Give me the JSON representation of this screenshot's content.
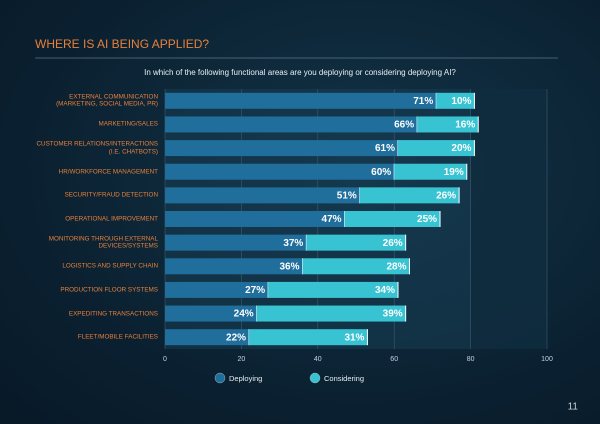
{
  "chart_data": {
    "type": "stacked-bar-horizontal",
    "title": "WHERE IS AI BEING APPLIED?",
    "subtitle": "In which of the following functional areas are you deploying or considering deploying AI?",
    "categories": [
      "EXTERNAL COMMUNICATION (MARKETING, SOCIAL MEDIA, PR)",
      "MARKETING/SALES",
      "CUSTOMER RELATIONS/INTERACTIONS (I.E. CHATBOTS)",
      "HR/WORKFORCE MANAGEMENT",
      "SECURITY/FRAUD DETECTION",
      "OPERATIONAL IMPROVEMENT",
      "MONITORING THROUGH EXTERNAL DEVICES/SYSTEMS",
      "LOGISTICS AND SUPPLY CHAIN",
      "PRODUCTION FLOOR SYSTEMS",
      "EXPEDITING TRANSACTIONS",
      "FLEET/MOBILE FACILITIES"
    ],
    "series": [
      {
        "name": "Deploying",
        "color": "#1f6e9c",
        "values": [
          71,
          66,
          61,
          60,
          51,
          47,
          37,
          36,
          27,
          24,
          22
        ],
        "value_labels": [
          "71%",
          "66%",
          "61%",
          "60%",
          "51%",
          "47%",
          "37%",
          "36%",
          "27%",
          "24%",
          "22%"
        ]
      },
      {
        "name": "Considering",
        "color": "#38c3d3",
        "values": [
          10,
          16,
          20,
          19,
          26,
          25,
          26,
          28,
          34,
          39,
          31
        ],
        "value_labels": [
          "10%",
          "16%",
          "20%",
          "19%",
          "26%",
          "25%",
          "26%",
          "28%",
          "34%",
          "39%",
          "31%"
        ]
      }
    ],
    "xlim": [
      0,
      100
    ],
    "xticks": [
      0,
      20,
      40,
      60,
      80,
      100
    ],
    "grid": true
  },
  "page_number": "11"
}
